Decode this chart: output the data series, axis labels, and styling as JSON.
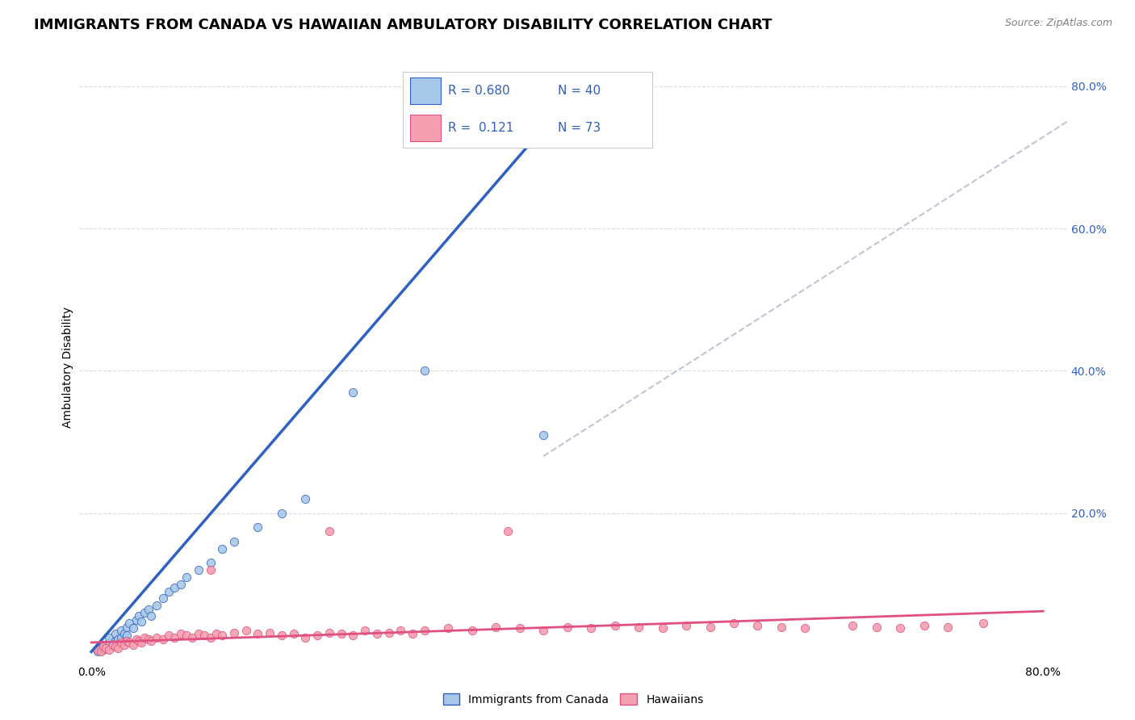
{
  "title": "IMMIGRANTS FROM CANADA VS HAWAIIAN AMBULATORY DISABILITY CORRELATION CHART",
  "source": "Source: ZipAtlas.com",
  "xlabel_legend1": "Immigrants from Canada",
  "xlabel_legend2": "Hawaiians",
  "ylabel": "Ambulatory Disability",
  "r1": 0.68,
  "n1": 40,
  "r2": 0.121,
  "n2": 73,
  "xmin": 0.0,
  "xmax": 0.8,
  "ymin": 0.0,
  "ymax": 0.82,
  "color_blue": "#A8C8E8",
  "color_pink": "#F4A0B0",
  "color_blue_line": "#3060C0",
  "color_pink_line": "#E05080",
  "color_dashed_line": "#B0B8C8",
  "blue_scatter_x": [
    0.005,
    0.008,
    0.01,
    0.01,
    0.012,
    0.015,
    0.015,
    0.018,
    0.02,
    0.02,
    0.022,
    0.025,
    0.025,
    0.028,
    0.03,
    0.03,
    0.032,
    0.035,
    0.038,
    0.04,
    0.042,
    0.045,
    0.048,
    0.05,
    0.055,
    0.06,
    0.065,
    0.07,
    0.075,
    0.08,
    0.09,
    0.1,
    0.11,
    0.12,
    0.14,
    0.16,
    0.18,
    0.22,
    0.28,
    0.38
  ],
  "blue_scatter_y": [
    0.005,
    0.01,
    0.008,
    0.015,
    0.012,
    0.018,
    0.025,
    0.015,
    0.02,
    0.03,
    0.022,
    0.025,
    0.035,
    0.03,
    0.028,
    0.04,
    0.045,
    0.038,
    0.05,
    0.055,
    0.048,
    0.06,
    0.065,
    0.055,
    0.07,
    0.08,
    0.09,
    0.095,
    0.1,
    0.11,
    0.12,
    0.13,
    0.15,
    0.16,
    0.18,
    0.2,
    0.22,
    0.37,
    0.4,
    0.31
  ],
  "pink_scatter_x": [
    0.005,
    0.008,
    0.01,
    0.012,
    0.015,
    0.018,
    0.02,
    0.022,
    0.025,
    0.028,
    0.03,
    0.032,
    0.035,
    0.038,
    0.04,
    0.042,
    0.045,
    0.048,
    0.05,
    0.055,
    0.06,
    0.065,
    0.07,
    0.075,
    0.08,
    0.085,
    0.09,
    0.095,
    0.1,
    0.105,
    0.11,
    0.12,
    0.13,
    0.14,
    0.15,
    0.16,
    0.17,
    0.18,
    0.19,
    0.2,
    0.21,
    0.22,
    0.23,
    0.24,
    0.25,
    0.26,
    0.27,
    0.28,
    0.3,
    0.32,
    0.34,
    0.36,
    0.38,
    0.4,
    0.42,
    0.44,
    0.46,
    0.48,
    0.5,
    0.52,
    0.54,
    0.56,
    0.58,
    0.6,
    0.64,
    0.66,
    0.68,
    0.7,
    0.72,
    0.75,
    0.1,
    0.2,
    0.35
  ],
  "pink_scatter_y": [
    0.008,
    0.005,
    0.012,
    0.01,
    0.008,
    0.015,
    0.012,
    0.01,
    0.018,
    0.015,
    0.02,
    0.018,
    0.015,
    0.022,
    0.02,
    0.018,
    0.025,
    0.022,
    0.02,
    0.025,
    0.022,
    0.028,
    0.025,
    0.03,
    0.028,
    0.025,
    0.03,
    0.028,
    0.025,
    0.03,
    0.028,
    0.032,
    0.035,
    0.03,
    0.032,
    0.028,
    0.03,
    0.025,
    0.028,
    0.032,
    0.03,
    0.028,
    0.035,
    0.03,
    0.032,
    0.035,
    0.03,
    0.035,
    0.038,
    0.035,
    0.04,
    0.038,
    0.035,
    0.04,
    0.038,
    0.042,
    0.04,
    0.038,
    0.042,
    0.04,
    0.045,
    0.042,
    0.04,
    0.038,
    0.042,
    0.04,
    0.038,
    0.042,
    0.04,
    0.045,
    0.12,
    0.175,
    0.175
  ],
  "background_color": "#FFFFFF",
  "plot_bg_color": "#FFFFFF",
  "grid_color": "#D8DCE0",
  "title_fontsize": 13,
  "label_fontsize": 10,
  "tick_fontsize": 10,
  "legend_fontsize": 12
}
